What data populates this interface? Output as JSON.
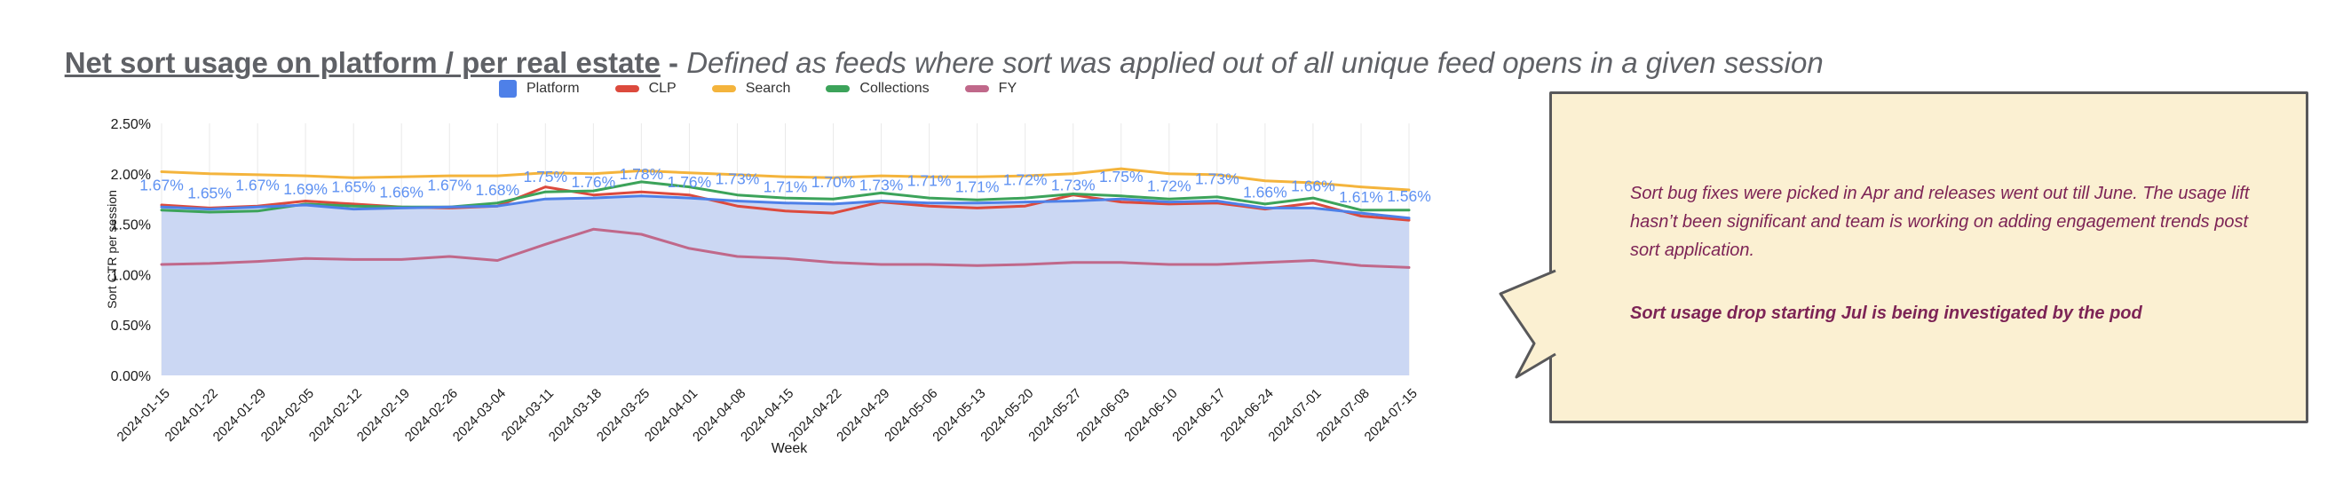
{
  "header": {
    "title": "Net sort usage on platform / per real estate",
    "separator": " - ",
    "subtitle": "Defined as feeds where sort was applied out of all unique feed opens in a given session"
  },
  "legend": {
    "position": "top",
    "items": [
      {
        "label": "Platform",
        "color": "#4E80E8",
        "marker": "square"
      },
      {
        "label": "CLP",
        "color": "#DC4A3D",
        "marker": "line"
      },
      {
        "label": "Search",
        "color": "#F4B43C",
        "marker": "line"
      },
      {
        "label": "Collections",
        "color": "#3CA35A",
        "marker": "line"
      },
      {
        "label": "FY",
        "color": "#C0688A",
        "marker": "line"
      }
    ]
  },
  "chart_data": {
    "type": "area",
    "title": "Net sort usage on platform / per real estate",
    "xlabel": "Week",
    "ylabel": "Sort CTR per session",
    "ylim": [
      0,
      2.5
    ],
    "grid": "vertical-per-point",
    "legend_position": "top",
    "y_ticks": [
      "0.00%",
      "0.50%",
      "1.00%",
      "1.50%",
      "2.00%",
      "2.50%"
    ],
    "x": [
      "2024-01-15",
      "2024-01-22",
      "2024-01-29",
      "2024-02-05",
      "2024-02-12",
      "2024-02-19",
      "2024-02-26",
      "2024-03-04",
      "2024-03-11",
      "2024-03-18",
      "2024-03-25",
      "2024-04-01",
      "2024-04-08",
      "2024-04-15",
      "2024-04-22",
      "2024-04-29",
      "2024-05-06",
      "2024-05-13",
      "2024-05-20",
      "2024-05-27",
      "2024-06-03",
      "2024-06-10",
      "2024-06-17",
      "2024-06-24",
      "2024-07-01",
      "2024-07-08",
      "2024-07-15"
    ],
    "series": [
      {
        "name": "Platform",
        "type": "area",
        "color": "#4E80E8",
        "fill": "#CBD7F3",
        "values": [
          1.67,
          1.65,
          1.67,
          1.69,
          1.65,
          1.66,
          1.67,
          1.68,
          1.75,
          1.76,
          1.78,
          1.76,
          1.73,
          1.71,
          1.7,
          1.73,
          1.71,
          1.71,
          1.72,
          1.73,
          1.75,
          1.72,
          1.73,
          1.66,
          1.66,
          1.61,
          1.56
        ],
        "labels": [
          "1.67%",
          "1.65%",
          "1.67%",
          "1.69%",
          "1.65%",
          "1.66%",
          "1.67%",
          "1.68%",
          "1.75%",
          "1.76%",
          "1.78%",
          "1.76%",
          "1.73%",
          "1.71%",
          "1.70%",
          "1.73%",
          "1.71%",
          "1.71%",
          "1.72%",
          "1.73%",
          "1.75%",
          "1.72%",
          "1.73%",
          "1.66%",
          "1.66%",
          "1.61%",
          "1.56%"
        ],
        "label_color": "#5E91F2"
      },
      {
        "name": "CLP",
        "type": "line",
        "color": "#DC4A3D",
        "values": [
          1.69,
          1.66,
          1.68,
          1.73,
          1.7,
          1.67,
          1.66,
          1.68,
          1.87,
          1.79,
          1.82,
          1.79,
          1.68,
          1.63,
          1.61,
          1.72,
          1.68,
          1.66,
          1.68,
          1.79,
          1.72,
          1.7,
          1.71,
          1.65,
          1.71,
          1.58,
          1.54
        ]
      },
      {
        "name": "Search",
        "type": "line",
        "color": "#F4B43C",
        "values": [
          2.02,
          2.0,
          1.99,
          1.98,
          1.96,
          1.97,
          1.98,
          1.98,
          2.01,
          2.0,
          2.03,
          2.01,
          1.99,
          1.97,
          1.96,
          1.98,
          1.97,
          1.97,
          1.98,
          2.0,
          2.05,
          2.0,
          1.99,
          1.93,
          1.91,
          1.87,
          1.84
        ]
      },
      {
        "name": "Collections",
        "type": "line",
        "color": "#3CA35A",
        "values": [
          1.64,
          1.62,
          1.63,
          1.7,
          1.68,
          1.67,
          1.67,
          1.71,
          1.82,
          1.83,
          1.92,
          1.87,
          1.79,
          1.76,
          1.75,
          1.81,
          1.76,
          1.74,
          1.76,
          1.8,
          1.78,
          1.75,
          1.77,
          1.7,
          1.76,
          1.64,
          1.64
        ]
      },
      {
        "name": "FY",
        "type": "line",
        "color": "#C0688A",
        "values": [
          1.1,
          1.11,
          1.13,
          1.16,
          1.15,
          1.15,
          1.18,
          1.14,
          1.3,
          1.45,
          1.4,
          1.26,
          1.18,
          1.16,
          1.12,
          1.1,
          1.1,
          1.09,
          1.1,
          1.12,
          1.12,
          1.1,
          1.1,
          1.12,
          1.14,
          1.09,
          1.07
        ]
      }
    ]
  },
  "axis_style": {
    "tick_color": "#1a1a1a",
    "grid_color": "#E9E9E9"
  },
  "callout": {
    "bg_color": "#FBF0D2",
    "border_color": "#58585A",
    "text_color": "#7D2456",
    "paragraphs": [
      {
        "text": "Sort bug fixes were picked in Apr and releases went out till June. The usage lift hasn’t been significant and team is working on adding engagement trends post sort application.",
        "bold": false
      },
      {
        "text": "Sort usage drop starting Jul is being investigated by the pod",
        "bold": true
      }
    ]
  }
}
